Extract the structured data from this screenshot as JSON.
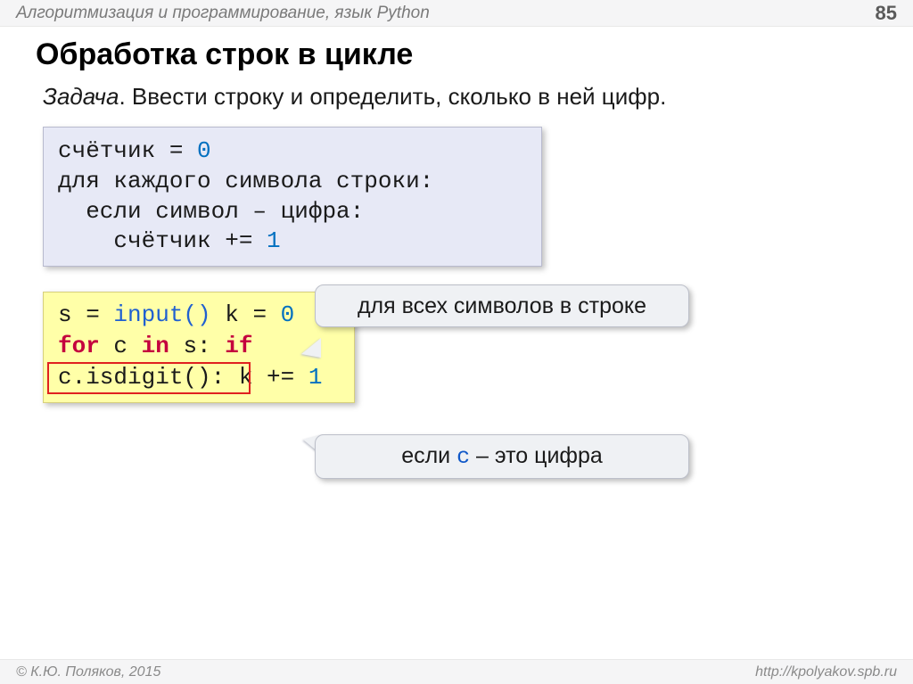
{
  "header": {
    "title": "Алгоритмизация и программирование, язык Python",
    "page_number": "85"
  },
  "section_title": "Обработка строк в цикле",
  "task": {
    "label": "Задача",
    "text": ". Ввести строку и определить, сколько в ней цифр."
  },
  "pseudocode": {
    "line1_a": "счётчик = ",
    "line1_b": "0",
    "line2": "для каждого символа строки:",
    "line3": "  если символ – цифра:",
    "line4_a": "    счётчик += ",
    "line4_b": "1"
  },
  "code": {
    "l1_a": "s = ",
    "l1_b": "input()",
    "l2_a": "k = ",
    "l2_b": "0",
    "l3_a": "for",
    "l3_b": " c ",
    "l3_c": "in",
    "l3_d": " s:",
    "l4_a": "  ",
    "l4_b": "if",
    "l4_c": " c.isdigit():",
    "l5_a": "    k += ",
    "l5_b": "1"
  },
  "callouts": {
    "c1": "для всех символов в строке",
    "c2_a": "если ",
    "c2_var": "c",
    "c2_b": " – это цифра"
  },
  "footer": {
    "copyright": "© К.Ю. Поляков, 2015",
    "url": "http://kpolyakov.spb.ru"
  },
  "colors": {
    "header_bg": "#f5f5f6",
    "pseudo_bg": "#e7e9f6",
    "code_bg": "#ffffa8",
    "callout_bg": "#eff1f4",
    "kw_color": "#c4003e",
    "func_color": "#2060d0",
    "lit_color": "#0070c0",
    "outline_color": "#e02020"
  }
}
